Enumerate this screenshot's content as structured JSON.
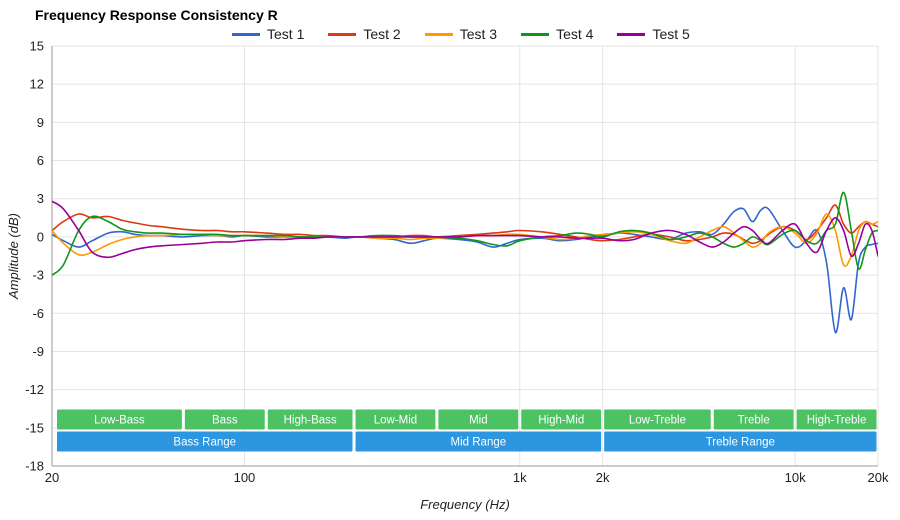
{
  "chart_data": {
    "type": "line",
    "title": "Frequency Response Consistency R",
    "xlabel": "Frequency (Hz)",
    "ylabel": "Amplitude (dB)",
    "x_scale": "log",
    "xlim": [
      20,
      20000
    ],
    "ylim": [
      -18,
      15
    ],
    "y_tick_step": 3,
    "grid": true,
    "legend_position": "top",
    "x_ticks": [
      {
        "value": 20,
        "label": "20"
      },
      {
        "value": 100,
        "label": "100"
      },
      {
        "value": 1000,
        "label": "1k"
      },
      {
        "value": 2000,
        "label": "2k"
      },
      {
        "value": 10000,
        "label": "10k"
      },
      {
        "value": 20000,
        "label": "20k"
      }
    ],
    "y_ticks": [
      15,
      12,
      9,
      6,
      3,
      0,
      -3,
      -6,
      -9,
      -12,
      -15,
      -18
    ],
    "frequencies": [
      20,
      22,
      25,
      28,
      32,
      36,
      40,
      45,
      50,
      60,
      70,
      80,
      90,
      100,
      120,
      140,
      160,
      180,
      200,
      230,
      260,
      300,
      350,
      400,
      450,
      500,
      600,
      700,
      800,
      900,
      1000,
      1200,
      1400,
      1600,
      1800,
      2000,
      2300,
      2600,
      3000,
      3500,
      4000,
      4500,
      5000,
      5500,
      6000,
      6500,
      7000,
      7500,
      8000,
      9000,
      10000,
      11000,
      12000,
      13000,
      14000,
      15000,
      16000,
      17000,
      18000,
      19000,
      20000
    ],
    "series": [
      {
        "name": "Test 1",
        "color": "#3366CC",
        "values": [
          0.2,
          -0.3,
          -0.8,
          -0.3,
          0.3,
          0.4,
          0.2,
          0.1,
          0.1,
          0.0,
          0.1,
          0.1,
          0.0,
          0.1,
          0.0,
          0.0,
          0.0,
          0.0,
          0.0,
          -0.1,
          0.0,
          -0.1,
          -0.2,
          -0.5,
          -0.3,
          -0.1,
          -0.2,
          -0.4,
          -0.8,
          -0.5,
          -0.2,
          -0.1,
          -0.3,
          -0.2,
          0.0,
          0.1,
          0.3,
          0.2,
          0.0,
          -0.2,
          0.3,
          0.4,
          0.2,
          1.0,
          2.0,
          2.2,
          1.2,
          2.1,
          2.2,
          0.5,
          -0.8,
          -0.3,
          0.5,
          -2.0,
          -7.5,
          -4.0,
          -6.5,
          -2.0,
          -0.8,
          -0.6,
          -0.5
        ]
      },
      {
        "name": "Test 2",
        "color": "#DC3912",
        "values": [
          0.5,
          1.2,
          1.8,
          1.5,
          1.6,
          1.3,
          1.1,
          0.9,
          0.8,
          0.6,
          0.5,
          0.5,
          0.4,
          0.4,
          0.3,
          0.2,
          0.2,
          0.1,
          0.1,
          0.0,
          0.0,
          0.0,
          0.0,
          0.1,
          0.1,
          0.0,
          0.1,
          0.2,
          0.3,
          0.4,
          0.5,
          0.4,
          0.2,
          0.0,
          -0.2,
          -0.3,
          -0.2,
          0.0,
          0.2,
          0.0,
          -0.3,
          -0.2,
          0.0,
          0.3,
          0.2,
          -0.2,
          -0.5,
          -0.3,
          0.2,
          0.8,
          0.5,
          -0.2,
          0.5,
          1.5,
          2.5,
          1.0,
          0.3,
          0.8,
          1.2,
          1.0,
          0.8
        ]
      },
      {
        "name": "Test 3",
        "color": "#FF9900",
        "values": [
          0.5,
          -0.5,
          -1.4,
          -1.2,
          -0.6,
          -0.2,
          0.0,
          0.1,
          0.1,
          0.2,
          0.2,
          0.1,
          0.1,
          0.1,
          0.1,
          0.0,
          0.0,
          0.0,
          0.0,
          0.0,
          0.0,
          -0.1,
          -0.1,
          -0.2,
          -0.1,
          -0.1,
          0.0,
          0.1,
          0.1,
          0.2,
          0.2,
          0.0,
          -0.2,
          -0.1,
          0.1,
          0.2,
          0.3,
          0.4,
          0.2,
          -0.3,
          -0.5,
          0.0,
          0.5,
          0.8,
          0.3,
          -0.3,
          -0.8,
          -0.5,
          0.3,
          0.8,
          0.3,
          -0.5,
          0.3,
          1.8,
          0.5,
          -2.2,
          -1.5,
          0.5,
          1.2,
          1.0,
          1.2
        ]
      },
      {
        "name": "Test 4",
        "color": "#109618",
        "values": [
          -3.0,
          -2.2,
          0.5,
          1.6,
          1.2,
          0.6,
          0.4,
          0.3,
          0.3,
          0.2,
          0.2,
          0.2,
          0.1,
          0.1,
          0.1,
          0.1,
          0.0,
          0.0,
          0.0,
          0.0,
          0.0,
          0.1,
          0.1,
          0.0,
          0.0,
          0.0,
          -0.1,
          -0.3,
          -0.6,
          -0.7,
          -0.3,
          0.0,
          0.1,
          0.3,
          0.2,
          0.0,
          0.4,
          0.5,
          0.3,
          -0.2,
          0.0,
          0.3,
          0.0,
          -0.5,
          -0.8,
          -0.5,
          0.0,
          -0.3,
          -0.6,
          0.2,
          0.5,
          -0.3,
          -0.5,
          0.5,
          1.0,
          3.5,
          0.5,
          -2.5,
          -1.0,
          0.3,
          0.5
        ]
      },
      {
        "name": "Test 5",
        "color": "#990099",
        "values": [
          2.8,
          2.2,
          0.5,
          -1.2,
          -1.6,
          -1.3,
          -1.0,
          -0.8,
          -0.7,
          -0.6,
          -0.5,
          -0.4,
          -0.4,
          -0.3,
          -0.2,
          -0.2,
          -0.1,
          -0.1,
          0.0,
          0.0,
          0.0,
          0.0,
          0.0,
          0.0,
          0.0,
          0.0,
          0.0,
          0.1,
          0.1,
          0.1,
          0.1,
          0.0,
          0.0,
          -0.1,
          -0.1,
          -0.1,
          -0.3,
          -0.2,
          0.3,
          0.5,
          0.2,
          -0.4,
          -0.8,
          -0.4,
          0.3,
          0.8,
          0.5,
          -0.2,
          -0.5,
          0.5,
          1.0,
          -0.5,
          -1.2,
          0.5,
          1.5,
          0.5,
          -1.5,
          -0.5,
          1.0,
          0.5,
          -1.5
        ]
      }
    ],
    "frequency_bands": {
      "sub_band_color": "#4dc263",
      "range_band_color": "#2d96e0",
      "sub_bands": [
        {
          "label": "Low-Bass",
          "from": 20,
          "to": 60
        },
        {
          "label": "Bass",
          "from": 60,
          "to": 120
        },
        {
          "label": "High-Bass",
          "from": 120,
          "to": 250
        },
        {
          "label": "Low-Mid",
          "from": 250,
          "to": 500
        },
        {
          "label": "Mid",
          "from": 500,
          "to": 1000
        },
        {
          "label": "High-Mid",
          "from": 1000,
          "to": 2000
        },
        {
          "label": "Low-Treble",
          "from": 2000,
          "to": 5000
        },
        {
          "label": "Treble",
          "from": 5000,
          "to": 10000
        },
        {
          "label": "High-Treble",
          "from": 10000,
          "to": 20000
        }
      ],
      "range_bands": [
        {
          "label": "Bass Range",
          "from": 20,
          "to": 250
        },
        {
          "label": "Mid Range",
          "from": 250,
          "to": 2000
        },
        {
          "label": "Treble Range",
          "from": 2000,
          "to": 20000
        }
      ]
    },
    "style": {
      "grid_color": "#e4e4e4",
      "axis_color": "#9a9a9a",
      "tick_label_color": "#222222",
      "band_text_color": "#ffffff"
    }
  }
}
